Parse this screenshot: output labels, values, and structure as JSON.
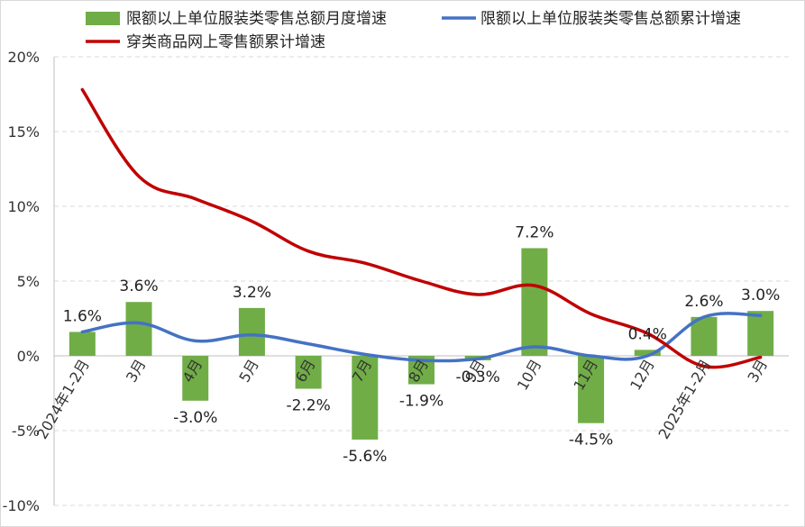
{
  "chart_data": {
    "type": "bar",
    "categories": [
      "2024年1-2月",
      "3月",
      "4月",
      "5月",
      "6月",
      "7月",
      "8月",
      "9月",
      "10月",
      "11月",
      "12月",
      "2025年1-2月",
      "3月"
    ],
    "y_ticks": [
      "20%",
      "15%",
      "10%",
      "5%",
      "0%",
      "-5%",
      "-10%"
    ],
    "ylim": [
      -10,
      20
    ],
    "grid": true,
    "legend_position": "top",
    "series": [
      {
        "name": "限额以上单位服装类零售总额月度增速",
        "type": "bar",
        "color": "#70ad47",
        "values": [
          1.6,
          3.6,
          -3.0,
          3.2,
          -2.2,
          -5.6,
          -1.9,
          -0.3,
          7.2,
          -4.5,
          0.4,
          2.6,
          3.0
        ],
        "labels": [
          "1.6%",
          "3.6%",
          "-3.0%",
          "3.2%",
          "-2.2%",
          "-5.6%",
          "-1.9%",
          "-0.3%",
          "7.2%",
          "-4.5%",
          "0.4%",
          "2.6%",
          "3.0%"
        ]
      },
      {
        "name": "限额以上单位服装类零售总额累计增速",
        "type": "line",
        "color": "#4472c4",
        "values": [
          1.6,
          2.2,
          1.0,
          1.4,
          0.8,
          0.1,
          -0.3,
          -0.2,
          0.6,
          0.0,
          0.0,
          2.6,
          2.7
        ]
      },
      {
        "name": "穿类商品网上零售额累计增速",
        "type": "line",
        "color": "#c00000",
        "values": [
          17.8,
          12.0,
          10.5,
          9.0,
          7.0,
          6.2,
          5.0,
          4.1,
          4.7,
          2.8,
          1.5,
          -0.7,
          -0.1
        ]
      }
    ]
  }
}
